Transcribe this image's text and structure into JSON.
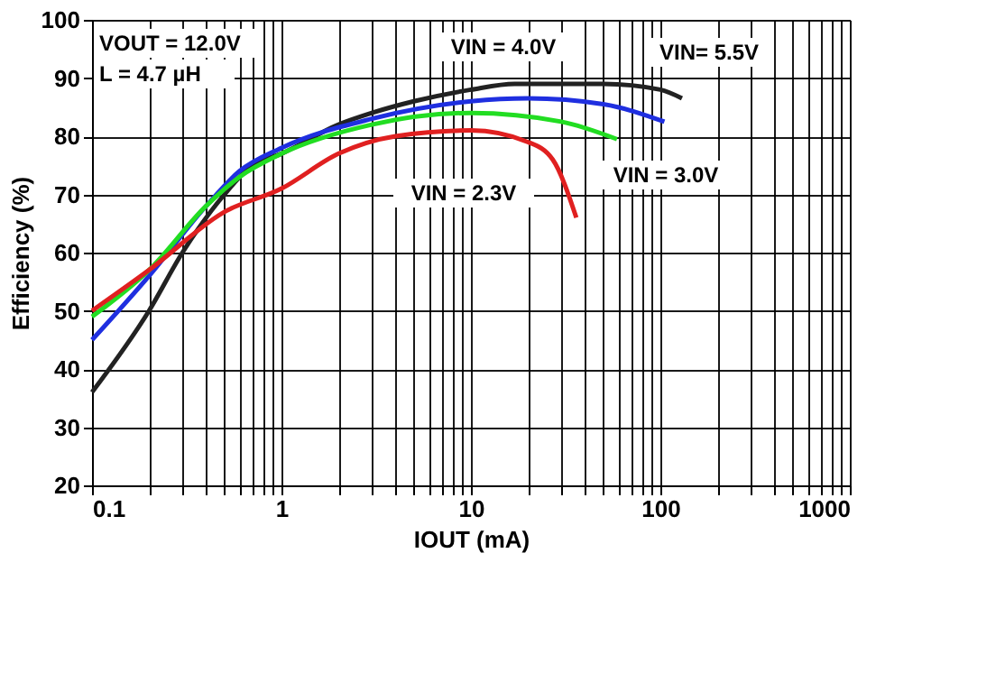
{
  "chart_data": {
    "type": "line",
    "xlabel": "IOUT (mA)",
    "ylabel": "Efficiency (%)",
    "log": "x",
    "grid": true,
    "marker": "none",
    "line_style": "solid",
    "xlim": [
      0.1,
      1000
    ],
    "ylim": [
      20,
      100
    ],
    "xticks": [
      0.1,
      {
        "value": 0.2,
        "label": null
      },
      {
        "value": 0.3,
        "label": null
      },
      {
        "value": 0.4,
        "label": null
      },
      {
        "value": 0.5,
        "label": null
      },
      {
        "value": 0.6,
        "label": null
      },
      {
        "value": 0.7,
        "label": null
      },
      {
        "value": 0.8,
        "label": null
      },
      {
        "value": 0.9,
        "label": null
      },
      1,
      {
        "value": 2,
        "label": null
      },
      {
        "value": 3,
        "label": null
      },
      {
        "value": 4,
        "label": null
      },
      {
        "value": 5,
        "label": null
      },
      {
        "value": 6,
        "label": null
      },
      {
        "value": 7,
        "label": null
      },
      {
        "value": 8,
        "label": null
      },
      {
        "value": 9,
        "label": null
      },
      10,
      {
        "value": 20,
        "label": null
      },
      {
        "value": 30,
        "label": null
      },
      {
        "value": 40,
        "label": null
      },
      {
        "value": 50,
        "label": null
      },
      {
        "value": 60,
        "label": null
      },
      {
        "value": 70,
        "label": null
      },
      {
        "value": 80,
        "label": null
      },
      {
        "value": 90,
        "label": null
      },
      100,
      {
        "value": 200,
        "label": null
      },
      {
        "value": 300,
        "label": null
      },
      {
        "value": 400,
        "label": null
      },
      {
        "value": 500,
        "label": null
      },
      {
        "value": 600,
        "label": null
      },
      {
        "value": 700,
        "label": null
      },
      {
        "value": 800,
        "label": null
      },
      {
        "value": 900,
        "label": null
      },
      1000
    ],
    "yticks": [
      20,
      30,
      40,
      50,
      60,
      70,
      80,
      90,
      100
    ],
    "series": [
      {
        "color": "#222222",
        "x": [
          0.1,
          0.2,
          0.3,
          0.5,
          0.7,
          1,
          2,
          3,
          5,
          10,
          17,
          50,
          100,
          130
        ],
        "values": [
          36,
          50,
          60,
          70,
          75,
          77,
          82,
          84,
          86,
          88,
          89,
          89,
          88,
          86.5
        ]
      },
      {
        "color": "#1f2fe0",
        "x": [
          0.1,
          0.2,
          0.4,
          0.6,
          1,
          3,
          10,
          20,
          50,
          105
        ],
        "values": [
          45,
          56,
          68,
          74,
          78,
          83,
          86,
          86.5,
          85.5,
          82.5
        ]
      },
      {
        "color": "#22dd22",
        "x": [
          0.1,
          0.2,
          0.4,
          0.6,
          1,
          3,
          10,
          30,
          59
        ],
        "values": [
          49,
          57,
          68,
          73,
          77,
          82,
          84,
          82.5,
          79.5
        ]
      },
      {
        "color": "#e02020",
        "x": [
          0.1,
          0.2,
          0.5,
          1,
          2,
          4,
          10,
          20,
          27,
          36
        ],
        "values": [
          50,
          57,
          67,
          71,
          77,
          80,
          81,
          79,
          76,
          66
        ]
      }
    ],
    "annotations": [
      "VOUT = 12.0V",
      "L = 4.7 µH",
      "VIN = 4.0V",
      "VIN= 5.5V",
      "VIN = 3.0V",
      "VIN = 2.3V"
    ]
  }
}
